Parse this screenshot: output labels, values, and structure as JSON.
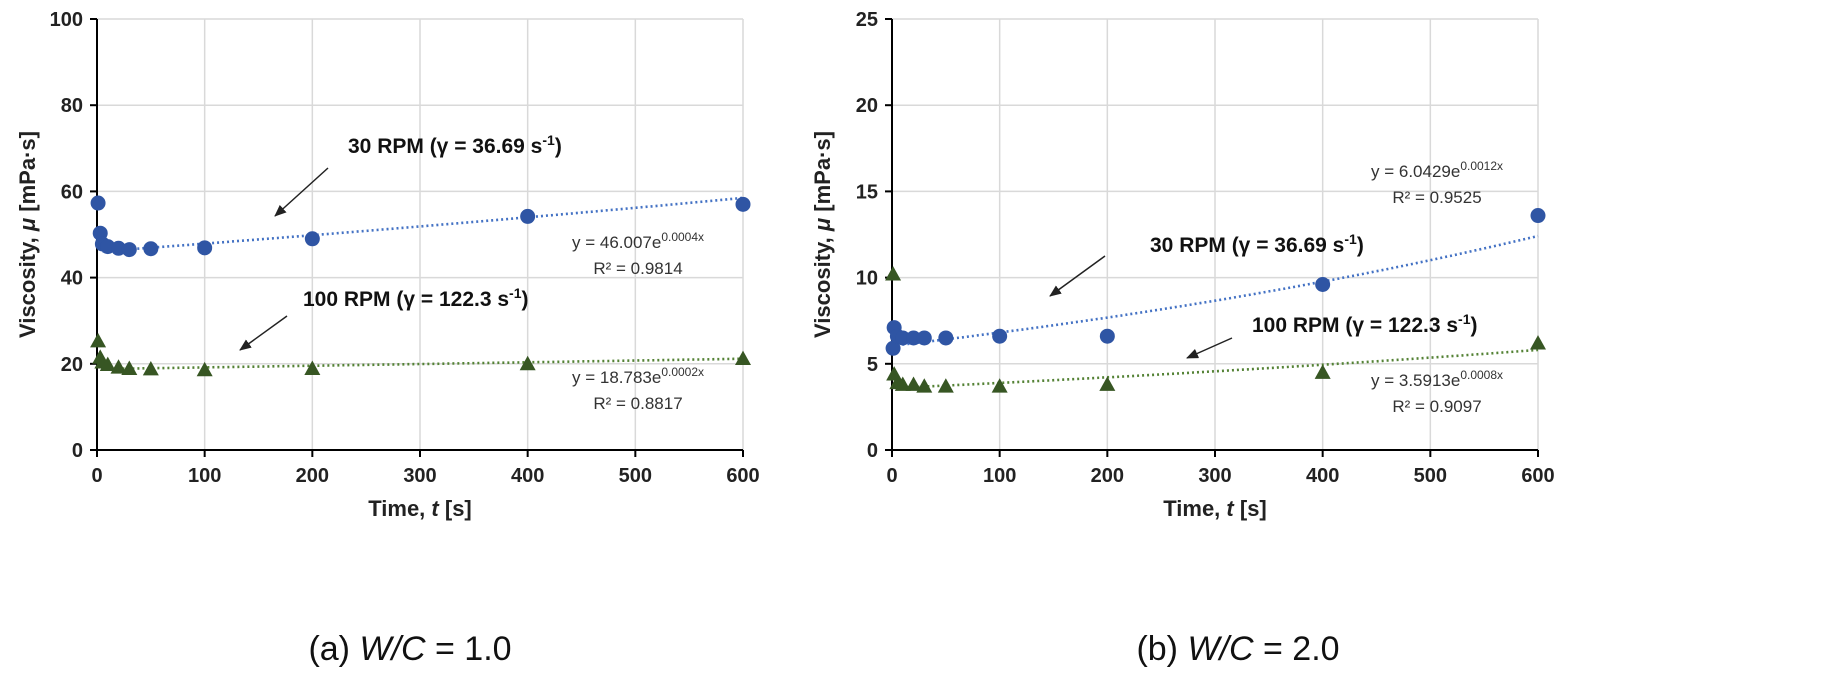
{
  "chart_data": [
    {
      "type": "scatter",
      "caption": {
        "prefix": "(a) ",
        "var": "W/C",
        "suffix": " = 1.0"
      },
      "xlabel": {
        "text": "Time, ",
        "var": "t",
        "unit": " [s]"
      },
      "ylabel": {
        "text": "Viscosity, ",
        "var": "μ",
        "unit": " [mPa·s]"
      },
      "xlim": [
        0,
        600
      ],
      "ylim": [
        0,
        100
      ],
      "xticks": [
        0,
        100,
        200,
        300,
        400,
        500,
        600
      ],
      "yticks": [
        0,
        20,
        40,
        60,
        80,
        100
      ],
      "grid": true,
      "series": [
        {
          "name": "30 RPM (γ = 36.69 s",
          "name_sup": "-1",
          "name_end": ")",
          "marker": "circle",
          "color": "#2F55A4",
          "trend_color": "#4472C4",
          "x": [
            1,
            3,
            5,
            10,
            20,
            30,
            50,
            100,
            200,
            400,
            600
          ],
          "y": [
            57.3,
            50.3,
            47.8,
            47.2,
            46.8,
            46.5,
            46.7,
            46.9,
            49.0,
            54.2,
            57.0
          ],
          "trendline": {
            "a": 46.007,
            "b": 0.0004,
            "equation": "y = 46.007e",
            "exponent": "0.0004x",
            "r2": "R² = 0.9814"
          }
        },
        {
          "name": "100 RPM (γ = 122.3 s",
          "name_sup": "-1",
          "name_end": ")",
          "marker": "triangle",
          "color": "#375623",
          "trend_color": "#548235",
          "x": [
            1,
            3,
            5,
            10,
            20,
            30,
            50,
            100,
            200,
            400,
            600
          ],
          "y": [
            25.3,
            21.5,
            20.4,
            19.8,
            19.2,
            18.9,
            18.8,
            18.6,
            18.9,
            20.0,
            21.2
          ],
          "trendline": {
            "a": 18.783,
            "b": 0.0002,
            "equation": "y = 18.783e",
            "exponent": "0.0002x",
            "r2": "R² = 0.8817"
          }
        }
      ]
    },
    {
      "type": "scatter",
      "caption": {
        "prefix": "(b) ",
        "var": "W/C",
        "suffix": " = 2.0"
      },
      "xlabel": {
        "text": "Time, ",
        "var": "t",
        "unit": " [s]"
      },
      "ylabel": {
        "text": "Viscosity, ",
        "var": "μ",
        "unit": " [mPa·s]"
      },
      "xlim": [
        0,
        600
      ],
      "ylim": [
        0,
        25
      ],
      "xticks": [
        0,
        100,
        200,
        300,
        400,
        500,
        600
      ],
      "yticks": [
        0,
        5,
        10,
        15,
        20,
        25
      ],
      "grid": true,
      "series": [
        {
          "name": "30 RPM (γ = 36.69 s",
          "name_sup": "-1",
          "name_end": ")",
          "marker": "circle",
          "color": "#2F55A4",
          "trend_color": "#4472C4",
          "x": [
            1,
            2,
            5,
            10,
            20,
            30,
            50,
            100,
            200,
            400,
            600
          ],
          "y": [
            5.9,
            7.1,
            6.6,
            6.5,
            6.5,
            6.5,
            6.5,
            6.6,
            6.6,
            9.6,
            13.6
          ],
          "trendline": {
            "a": 6.0429,
            "b": 0.0012,
            "equation": "y = 6.0429e",
            "exponent": "0.0012x",
            "r2": "R² = 0.9525"
          }
        },
        {
          "name": "100 RPM (γ = 122.3 s",
          "name_sup": "-1",
          "name_end": ")",
          "marker": "triangle",
          "color": "#375623",
          "trend_color": "#548235",
          "x": [
            1,
            2,
            5,
            10,
            20,
            30,
            50,
            100,
            200,
            400,
            600
          ],
          "y": [
            10.2,
            4.4,
            3.9,
            3.8,
            3.8,
            3.7,
            3.7,
            3.7,
            3.8,
            4.5,
            6.2
          ],
          "trendline": {
            "a": 3.5913,
            "b": 0.0008,
            "equation": "y = 3.5913e",
            "exponent": "0.0008x",
            "r2": "R² = 0.9097"
          }
        }
      ]
    }
  ]
}
